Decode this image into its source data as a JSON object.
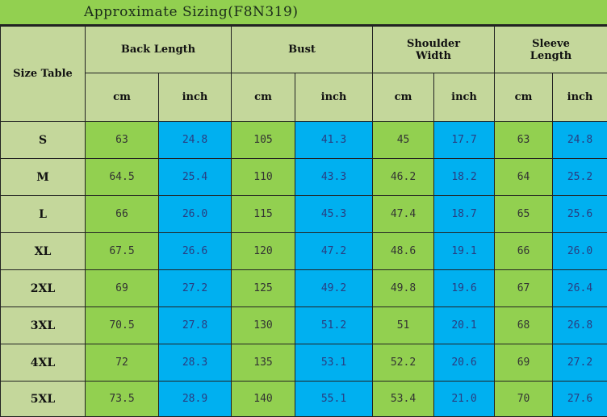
{
  "title": "Approximate Sizing(F8N319)",
  "corner_label": "Size Table",
  "groups": [
    "Back Length",
    "Bust",
    "Shoulder Width",
    "Sleeve Length"
  ],
  "units": [
    "cm",
    "inch"
  ],
  "colors": {
    "header": "#c4d79b",
    "cm_cells": "#92d050",
    "inch_cells": "#00b0f0",
    "title_bar": "#92d050"
  },
  "rows": [
    {
      "size": "S",
      "values": [
        "63",
        "24.8",
        "105",
        "41.3",
        "45",
        "17.7",
        "63",
        "24.8"
      ]
    },
    {
      "size": "M",
      "values": [
        "64.5",
        "25.4",
        "110",
        "43.3",
        "46.2",
        "18.2",
        "64",
        "25.2"
      ]
    },
    {
      "size": "L",
      "values": [
        "66",
        "26.0",
        "115",
        "45.3",
        "47.4",
        "18.7",
        "65",
        "25.6"
      ]
    },
    {
      "size": "XL",
      "values": [
        "67.5",
        "26.6",
        "120",
        "47.2",
        "48.6",
        "19.1",
        "66",
        "26.0"
      ]
    },
    {
      "size": "2XL",
      "values": [
        "69",
        "27.2",
        "125",
        "49.2",
        "49.8",
        "19.6",
        "67",
        "26.4"
      ]
    },
    {
      "size": "3XL",
      "values": [
        "70.5",
        "27.8",
        "130",
        "51.2",
        "51",
        "20.1",
        "68",
        "26.8"
      ]
    },
    {
      "size": "4XL",
      "values": [
        "72",
        "28.3",
        "135",
        "53.1",
        "52.2",
        "20.6",
        "69",
        "27.2"
      ]
    },
    {
      "size": "5XL",
      "values": [
        "73.5",
        "28.9",
        "140",
        "55.1",
        "53.4",
        "21.0",
        "70",
        "27.6"
      ]
    }
  ]
}
